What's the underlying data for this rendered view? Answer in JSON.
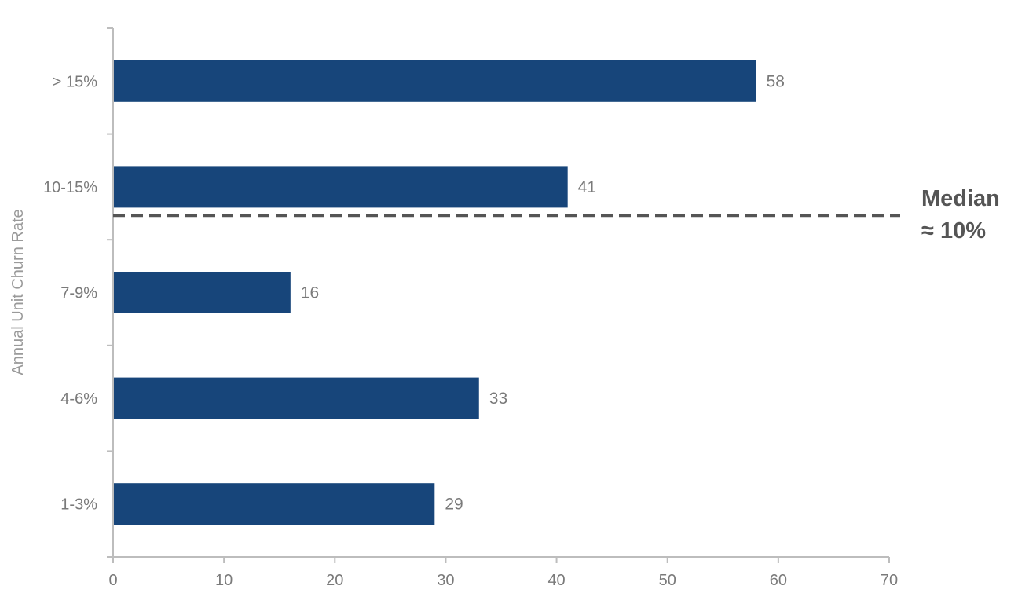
{
  "chart_data": {
    "type": "bar",
    "orientation": "horizontal",
    "categories": [
      "> 15%",
      "10-15%",
      "7-9%",
      "4-6%",
      "1-3%"
    ],
    "values": [
      58,
      41,
      16,
      33,
      29
    ],
    "title": "",
    "xlabel": "",
    "ylabel": "Annual Unit Churn Rate",
    "xlim": [
      0,
      70
    ],
    "xticks": [
      0,
      10,
      20,
      30,
      40,
      50,
      60,
      70
    ],
    "grid": false,
    "bar_color": "#17457A",
    "annotation": {
      "line1": "Median",
      "line2": "≈ 10%",
      "style": "dashed",
      "color": "#555555"
    }
  }
}
